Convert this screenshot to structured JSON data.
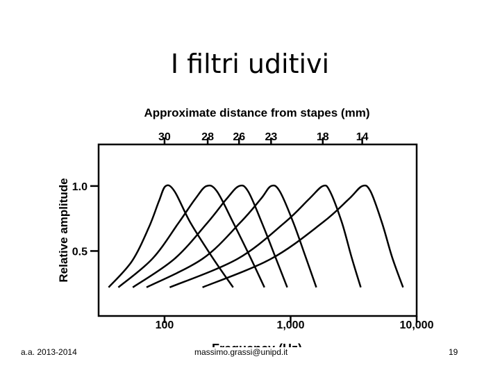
{
  "slide": {
    "title": "I filtri uditivi"
  },
  "footer": {
    "left": "a.a. 2013-2014",
    "center": "massimo.grassi@unipd.it",
    "right": "19"
  },
  "chart_data": {
    "type": "line",
    "top_axis_title": "Approximate distance from stapes (mm)",
    "top_ticks": [
      {
        "label": "30",
        "freq": 100
      },
      {
        "label": "28",
        "freq": 220
      },
      {
        "label": "26",
        "freq": 390
      },
      {
        "label": "23",
        "freq": 700
      },
      {
        "label": "18",
        "freq": 1800
      },
      {
        "label": "14",
        "freq": 3700
      }
    ],
    "xlabel": "Frequency  (Hz)",
    "ylabel": "Relative amplitude",
    "x_scale": "log",
    "xlim": [
      30,
      10000
    ],
    "ylim": [
      0,
      1.32
    ],
    "x_ticks": [
      {
        "label": "100",
        "value": 100
      },
      {
        "label": "1,000",
        "value": 1000
      },
      {
        "label": "10,000",
        "value": 10000
      }
    ],
    "y_ticks": [
      {
        "label": "0.5",
        "value": 0.5
      },
      {
        "label": "1.0",
        "value": 1.0
      }
    ],
    "grid": false,
    "series": [
      {
        "points": [
          [
            36,
            0.22
          ],
          [
            55,
            0.42
          ],
          [
            75,
            0.68
          ],
          [
            90,
            0.88
          ],
          [
            102,
            1.0
          ],
          [
            120,
            0.96
          ],
          [
            160,
            0.72
          ],
          [
            240,
            0.45
          ],
          [
            350,
            0.22
          ]
        ]
      },
      {
        "points": [
          [
            43,
            0.22
          ],
          [
            80,
            0.44
          ],
          [
            130,
            0.72
          ],
          [
            175,
            0.9
          ],
          [
            215,
            1.0
          ],
          [
            260,
            0.96
          ],
          [
            350,
            0.72
          ],
          [
            480,
            0.45
          ],
          [
            620,
            0.22
          ]
        ]
      },
      {
        "points": [
          [
            56,
            0.22
          ],
          [
            120,
            0.44
          ],
          [
            220,
            0.72
          ],
          [
            310,
            0.9
          ],
          [
            390,
            1.0
          ],
          [
            460,
            0.96
          ],
          [
            590,
            0.72
          ],
          [
            760,
            0.45
          ],
          [
            940,
            0.22
          ]
        ]
      },
      {
        "points": [
          [
            72,
            0.22
          ],
          [
            200,
            0.44
          ],
          [
            400,
            0.72
          ],
          [
            580,
            0.9
          ],
          [
            700,
            1.0
          ],
          [
            820,
            0.96
          ],
          [
            1050,
            0.72
          ],
          [
            1320,
            0.45
          ],
          [
            1600,
            0.22
          ]
        ]
      },
      {
        "points": [
          [
            110,
            0.22
          ],
          [
            380,
            0.44
          ],
          [
            900,
            0.72
          ],
          [
            1400,
            0.9
          ],
          [
            1800,
            1.0
          ],
          [
            2050,
            0.96
          ],
          [
            2550,
            0.72
          ],
          [
            3050,
            0.45
          ],
          [
            3600,
            0.22
          ]
        ]
      },
      {
        "points": [
          [
            200,
            0.22
          ],
          [
            700,
            0.44
          ],
          [
            1800,
            0.72
          ],
          [
            2900,
            0.9
          ],
          [
            3700,
            1.0
          ],
          [
            4300,
            0.96
          ],
          [
            5300,
            0.72
          ],
          [
            6400,
            0.45
          ],
          [
            7800,
            0.22
          ]
        ]
      }
    ]
  }
}
